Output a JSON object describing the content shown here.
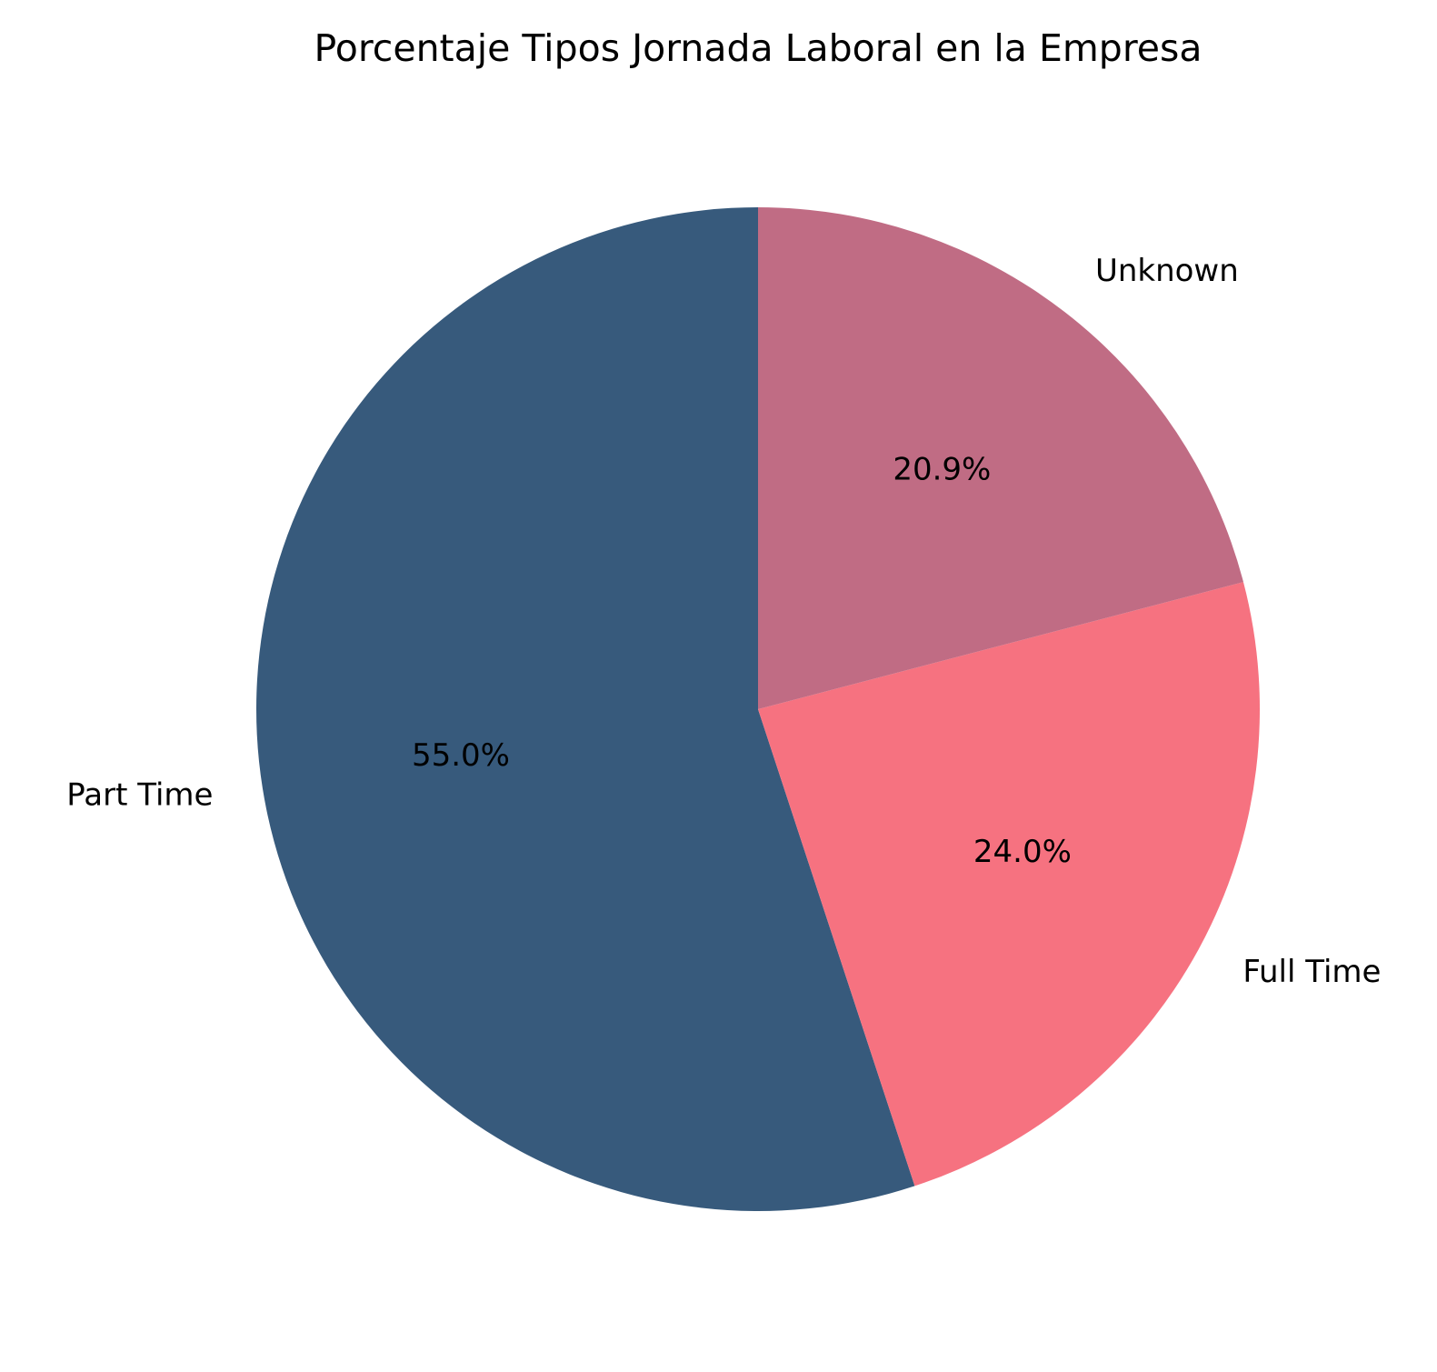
{
  "chart_data": {
    "type": "pie",
    "title": "Porcentaje Tipos Jornada Laboral en la Empresa",
    "start_angle_deg": 90,
    "direction": "counterclockwise",
    "slices": [
      {
        "label": "Part Time",
        "value": 55.0,
        "pct_label": "55.0%",
        "color": "#375a7c"
      },
      {
        "label": "Full Time",
        "value": 24.0,
        "pct_label": "24.0%",
        "color": "#f67280"
      },
      {
        "label": "Unknown",
        "value": 20.9,
        "pct_label": "20.9%",
        "color": "#c06c84"
      }
    ]
  }
}
